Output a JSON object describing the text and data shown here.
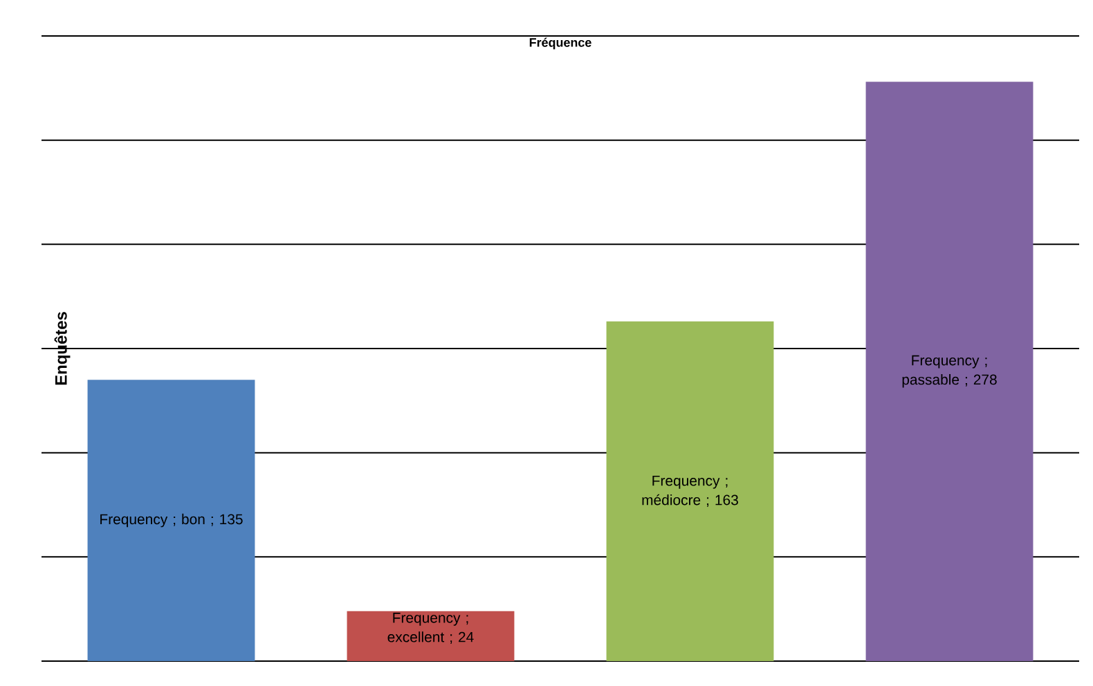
{
  "chart_data": {
    "type": "bar",
    "title": "Fréquence",
    "ylabel": "Enquêtes",
    "categories": [
      null,
      null,
      null,
      null
    ],
    "values": [
      135,
      24,
      163,
      278
    ],
    "colors": [
      "#4f81bd",
      "#c0504d",
      "#9bbb59",
      "#8064a2"
    ],
    "value_labels": [
      "Frequency ; bon ; 135",
      "Frequency ; excellent ; 24",
      "Frequency ; médiocre ; 163",
      "Frequency ; passable ; 278"
    ],
    "ylim": [
      0,
      300
    ],
    "yticks": [
      {
        "value": 0,
        "label": null
      },
      {
        "value": 50,
        "label": null
      },
      {
        "value": 100,
        "label": null
      },
      {
        "value": 150,
        "label": null
      },
      {
        "value": 200,
        "label": null
      },
      {
        "value": 250,
        "label": null
      },
      {
        "value": 300,
        "label": null
      }
    ],
    "grid": "y"
  }
}
